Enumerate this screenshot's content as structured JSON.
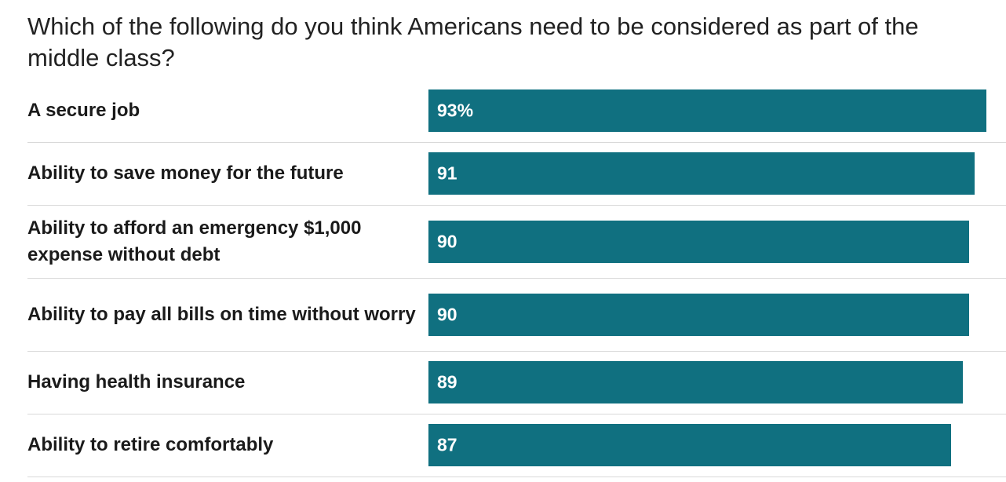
{
  "chart_data": {
    "type": "bar",
    "orientation": "horizontal",
    "title": "Which of the following do you think Americans need to be considered as part of the middle class?",
    "categories": [
      "A secure job",
      "Ability to save money for the future",
      "Ability to afford an emergency $1,000 expense without debt",
      "Ability to pay all bills on time without worry",
      "Having health insurance",
      "Ability to retire comfortably"
    ],
    "values": [
      93,
      91,
      90,
      90,
      89,
      87
    ],
    "value_labels": [
      "93%",
      "91",
      "90",
      "90",
      "89",
      "87"
    ],
    "xlim": [
      0,
      100
    ],
    "grid": false,
    "legend": "none",
    "bar_color": "#107080"
  }
}
